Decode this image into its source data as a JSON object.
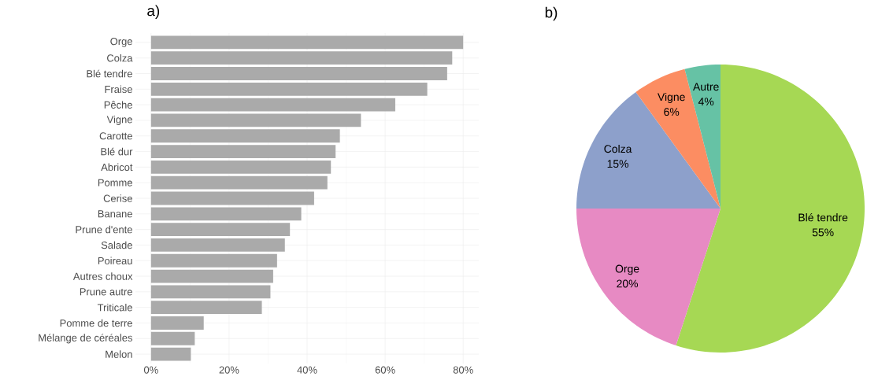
{
  "chart_data": [
    {
      "type": "bar",
      "orientation": "horizontal",
      "title": "a)",
      "categories": [
        "Orge",
        "Colza",
        "Blé tendre",
        "Fraise",
        "Pêche",
        "Vigne",
        "Carotte",
        "Blé dur",
        "Abricot",
        "Pomme",
        "Cerise",
        "Banane",
        "Prune d'ente",
        "Salade",
        "Poireau",
        "Autres choux",
        "Prune autre",
        "Triticale",
        "Pomme de terre",
        "Mélange de céréales",
        "Melon"
      ],
      "values": [
        80,
        77.2,
        75.9,
        70.8,
        62.6,
        53.8,
        48.4,
        47.3,
        46.1,
        45.2,
        41.8,
        38.5,
        35.6,
        34.3,
        32.3,
        31.3,
        30.6,
        28.4,
        13.5,
        11.2,
        10.2
      ],
      "color": "#aaaaaa",
      "xlim": [
        -4,
        84
      ],
      "xticks": [
        {
          "value": 0,
          "label": "0%"
        },
        {
          "value": 20,
          "label": "20%"
        },
        {
          "value": 40,
          "label": "40%"
        },
        {
          "value": 60,
          "label": "60%"
        },
        {
          "value": 80,
          "label": "80%"
        }
      ],
      "grid": true
    },
    {
      "type": "pie",
      "title": "b)",
      "categories": [
        "Blé tendre",
        "Orge",
        "Colza",
        "Vigne",
        "Autre"
      ],
      "values": [
        55,
        20,
        15,
        6,
        4
      ],
      "value_labels": [
        "55%",
        "20%",
        "15%",
        "6%",
        "4%"
      ],
      "colors": [
        "#a6d854",
        "#e78ac3",
        "#8da0cb",
        "#fc8d62",
        "#66c2a5"
      ]
    }
  ]
}
